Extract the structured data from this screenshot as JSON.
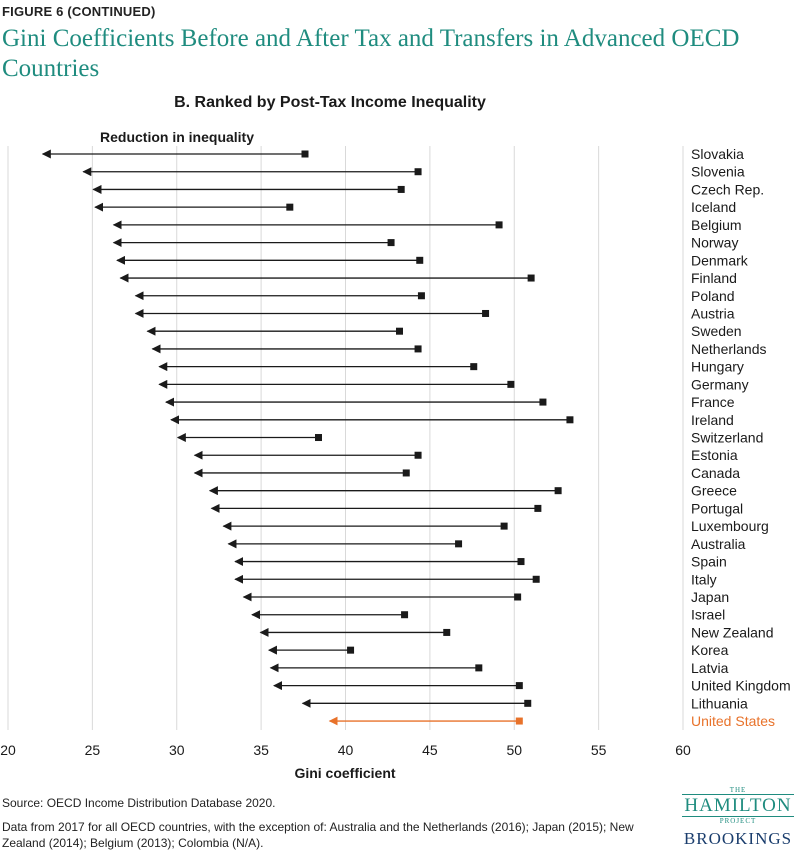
{
  "header": {
    "figure_label": "FIGURE 6 (CONTINUED)",
    "title": "Gini Coefficients Before and After Tax and Transfers in Advanced OECD Countries",
    "subtitle": "B. Ranked by Post-Tax Income Inequality"
  },
  "chart_data": {
    "type": "dumbbell-arrow",
    "annotation": "Reduction in inequality",
    "xlabel": "Gini coefficient",
    "xlim": [
      20,
      60
    ],
    "xticks": [
      20,
      25,
      30,
      35,
      40,
      45,
      50,
      55,
      60
    ],
    "grid": true,
    "colors": {
      "default": "#1a1a1a",
      "highlight": "#e8722a",
      "grid": "#d9d9d9"
    },
    "highlight_country": "United States",
    "countries": [
      {
        "name": "Slovakia",
        "pre_tax": 37.6,
        "post_tax": 22.0
      },
      {
        "name": "Slovenia",
        "pre_tax": 44.3,
        "post_tax": 24.4
      },
      {
        "name": "Czech Rep.",
        "pre_tax": 43.3,
        "post_tax": 25.0
      },
      {
        "name": "Iceland",
        "pre_tax": 36.7,
        "post_tax": 25.1
      },
      {
        "name": "Belgium",
        "pre_tax": 49.1,
        "post_tax": 26.2
      },
      {
        "name": "Norway",
        "pre_tax": 42.7,
        "post_tax": 26.2
      },
      {
        "name": "Denmark",
        "pre_tax": 44.4,
        "post_tax": 26.4
      },
      {
        "name": "Finland",
        "pre_tax": 51.0,
        "post_tax": 26.6
      },
      {
        "name": "Poland",
        "pre_tax": 44.5,
        "post_tax": 27.5
      },
      {
        "name": "Austria",
        "pre_tax": 48.3,
        "post_tax": 27.5
      },
      {
        "name": "Sweden",
        "pre_tax": 43.2,
        "post_tax": 28.2
      },
      {
        "name": "Netherlands",
        "pre_tax": 44.3,
        "post_tax": 28.5
      },
      {
        "name": "Hungary",
        "pre_tax": 47.6,
        "post_tax": 28.9
      },
      {
        "name": "Germany",
        "pre_tax": 49.8,
        "post_tax": 28.9
      },
      {
        "name": "France",
        "pre_tax": 51.7,
        "post_tax": 29.3
      },
      {
        "name": "Ireland",
        "pre_tax": 53.3,
        "post_tax": 29.6
      },
      {
        "name": "Switzerland",
        "pre_tax": 38.4,
        "post_tax": 30.0
      },
      {
        "name": "Estonia",
        "pre_tax": 44.3,
        "post_tax": 31.0
      },
      {
        "name": "Canada",
        "pre_tax": 43.6,
        "post_tax": 31.0
      },
      {
        "name": "Greece",
        "pre_tax": 52.6,
        "post_tax": 31.9
      },
      {
        "name": "Portugal",
        "pre_tax": 51.4,
        "post_tax": 32.0
      },
      {
        "name": "Luxembourg",
        "pre_tax": 49.4,
        "post_tax": 32.7
      },
      {
        "name": "Australia",
        "pre_tax": 46.7,
        "post_tax": 33.0
      },
      {
        "name": "Spain",
        "pre_tax": 50.4,
        "post_tax": 33.4
      },
      {
        "name": "Italy",
        "pre_tax": 51.3,
        "post_tax": 33.4
      },
      {
        "name": "Japan",
        "pre_tax": 50.2,
        "post_tax": 33.9
      },
      {
        "name": "Israel",
        "pre_tax": 43.5,
        "post_tax": 34.4
      },
      {
        "name": "New Zealand",
        "pre_tax": 46.0,
        "post_tax": 34.9
      },
      {
        "name": "Korea",
        "pre_tax": 40.3,
        "post_tax": 35.4
      },
      {
        "name": "Latvia",
        "pre_tax": 47.9,
        "post_tax": 35.5
      },
      {
        "name": "United Kingdom",
        "pre_tax": 50.3,
        "post_tax": 35.7
      },
      {
        "name": "Lithuania",
        "pre_tax": 50.8,
        "post_tax": 37.4
      },
      {
        "name": "United States",
        "pre_tax": 50.3,
        "post_tax": 39.0
      }
    ]
  },
  "footer": {
    "source": "Source:  OECD Income Distribution Database 2020.",
    "note": "Data from 2017 for all OECD countries, with the exception of: Australia and the Netherlands (2016); Japan (2015); New Zealand (2014); Belgium (2013); Colombia (N/A)."
  },
  "logo": {
    "the": "THE",
    "hamilton": "HAMILTON",
    "project": "PROJECT",
    "brookings": "BROOKINGS"
  }
}
